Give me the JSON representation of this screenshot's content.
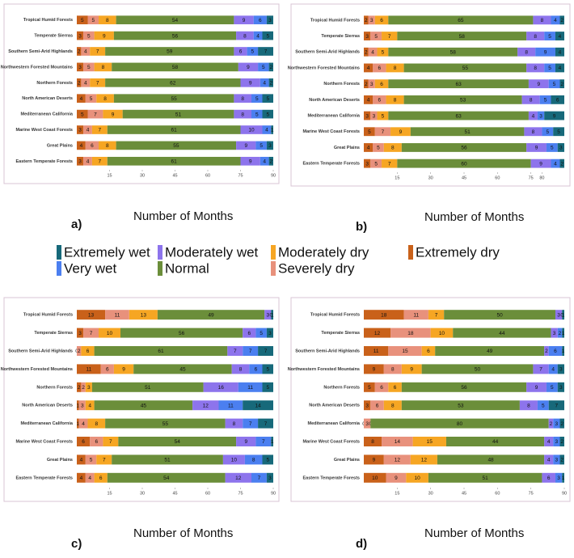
{
  "chart_data": [
    {
      "type": "bar",
      "orientation": "horizontal",
      "stacked": true,
      "label": "a)",
      "x_label": "Number of Months",
      "categories": [
        "Tropical Humid Forests",
        "Temperate Sierras",
        "Southern Semi-Arid Highlands",
        "Northwestern Forested Mountains",
        "Northern Forests",
        "North American Deserts",
        "Mediterranean California",
        "Marine West Coast Forests",
        "Great Plains",
        "Eastern Temperate Forests"
      ],
      "series": [
        {
          "name": "Extremely dry",
          "color": "#c9611a",
          "values": [
            5,
            3,
            2,
            3,
            2,
            4,
            5,
            3,
            4,
            3
          ]
        },
        {
          "name": "Severely dry",
          "color": "#e8917c",
          "values": [
            5,
            5,
            4,
            5,
            4,
            5,
            7,
            4,
            6,
            4
          ]
        },
        {
          "name": "Moderately dry",
          "color": "#f6a623",
          "values": [
            8,
            9,
            7,
            8,
            7,
            8,
            9,
            7,
            8,
            7
          ]
        },
        {
          "name": "Normal",
          "color": "#6b8e3a",
          "values": [
            54,
            56,
            59,
            58,
            62,
            55,
            51,
            61,
            55,
            61
          ]
        },
        {
          "name": "Moderately wet",
          "color": "#8d74ec",
          "values": [
            9,
            8,
            6,
            9,
            9,
            8,
            8,
            10,
            9,
            9
          ]
        },
        {
          "name": "Very wet",
          "color": "#4b7ff0",
          "values": [
            6,
            4,
            5,
            5,
            4,
            5,
            5,
            4,
            5,
            4
          ]
        },
        {
          "name": "Extremely wet",
          "color": "#17697a",
          "values": [
            3,
            5,
            7,
            2,
            2,
            5,
            5,
            1,
            3,
            2
          ]
        }
      ],
      "xlim": [
        0,
        90
      ],
      "xticks": [
        15,
        30,
        45,
        60,
        75,
        90
      ]
    },
    {
      "type": "bar",
      "orientation": "horizontal",
      "stacked": true,
      "label": "b)",
      "x_label": "Number of Months",
      "categories": [
        "Tropical Humid Forests",
        "Temperate Sierras",
        "Southern Semi-Arid Highlands",
        "Northwestern Forested Mountains",
        "Northern Forests",
        "North American Deserts",
        "Mediterranean California",
        "Marine West Coast Forests",
        "Great Plains",
        "Eastern Temperate Forests"
      ],
      "series": [
        {
          "name": "Extremely dry",
          "color": "#c9611a",
          "values": [
            2,
            3,
            2,
            4,
            2,
            4,
            3,
            5,
            4,
            3
          ]
        },
        {
          "name": "Severely dry",
          "color": "#e8917c",
          "values": [
            3,
            5,
            4,
            6,
            3,
            6,
            3,
            7,
            5,
            5
          ]
        },
        {
          "name": "Moderately dry",
          "color": "#f6a623",
          "values": [
            6,
            7,
            5,
            8,
            6,
            8,
            5,
            9,
            8,
            7
          ]
        },
        {
          "name": "Normal",
          "color": "#6b8e3a",
          "values": [
            65,
            58,
            58,
            55,
            63,
            53,
            63,
            51,
            56,
            60
          ]
        },
        {
          "name": "Moderately wet",
          "color": "#8d74ec",
          "values": [
            8,
            8,
            8,
            8,
            9,
            8,
            4,
            8,
            9,
            9
          ]
        },
        {
          "name": "Very wet",
          "color": "#4b7ff0",
          "values": [
            4,
            5,
            9,
            5,
            5,
            5,
            3,
            5,
            5,
            4
          ]
        },
        {
          "name": "Extremely wet",
          "color": "#17697a",
          "values": [
            2,
            4,
            4,
            4,
            2,
            6,
            9,
            5,
            3,
            2
          ]
        }
      ],
      "xlim": [
        0,
        90
      ],
      "xticks": [
        15,
        30,
        45,
        60,
        75,
        80
      ]
    },
    {
      "type": "bar",
      "orientation": "horizontal",
      "stacked": true,
      "label": "c)",
      "x_label": "Number of Months",
      "categories": [
        "Tropical Humid Forests",
        "Temperate Sierras",
        "Southern Semi-Arid Highlands",
        "Northwestern Forested Mountains",
        "Northern Forests",
        "North American Deserts",
        "Mediterranean California",
        "Marine West Coast Forests",
        "Great Plains",
        "Eastern Temperate Forests"
      ],
      "series": [
        {
          "name": "Extremely dry",
          "color": "#c9611a",
          "values": [
            13,
            3,
            0,
            11,
            2,
            1,
            1,
            6,
            4,
            4
          ]
        },
        {
          "name": "Severely dry",
          "color": "#e8917c",
          "values": [
            11,
            7,
            2,
            6,
            2,
            3,
            4,
            6,
            5,
            4
          ]
        },
        {
          "name": "Moderately dry",
          "color": "#f6a623",
          "values": [
            13,
            10,
            6,
            9,
            3,
            4,
            8,
            7,
            7,
            6
          ]
        },
        {
          "name": "Normal",
          "color": "#6b8e3a",
          "values": [
            49,
            56,
            61,
            45,
            51,
            45,
            55,
            54,
            51,
            54
          ]
        },
        {
          "name": "Moderately wet",
          "color": "#8d74ec",
          "values": [
            3,
            6,
            7,
            8,
            16,
            12,
            8,
            9,
            10,
            12
          ]
        },
        {
          "name": "Very wet",
          "color": "#4b7ff0",
          "values": [
            0,
            5,
            7,
            6,
            11,
            11,
            7,
            7,
            8,
            7
          ]
        },
        {
          "name": "Extremely wet",
          "color": "#17697a",
          "values": [
            1,
            3,
            7,
            5,
            5,
            14,
            7,
            1,
            5,
            3
          ]
        }
      ],
      "xlim": [
        0,
        90
      ],
      "xticks": [
        15,
        30,
        45,
        60,
        75,
        90
      ]
    },
    {
      "type": "bar",
      "orientation": "horizontal",
      "stacked": true,
      "label": "d)",
      "x_label": "Number of Months",
      "categories": [
        "Tropical Humid Forests",
        "Temperate Sierras",
        "Southern Semi-Arid Highlands",
        "Northwestern Forested Mountains",
        "Northern Forests",
        "North American Deserts",
        "Mediterranean California",
        "Marine West Coast Forests",
        "Great Plains",
        "Eastern Temperate Forests"
      ],
      "series": [
        {
          "name": "Extremely dry",
          "color": "#c9611a",
          "values": [
            18,
            12,
            11,
            9,
            5,
            3,
            0,
            8,
            9,
            10
          ]
        },
        {
          "name": "Severely dry",
          "color": "#e8917c",
          "values": [
            11,
            18,
            15,
            8,
            6,
            6,
            3,
            14,
            12,
            9
          ]
        },
        {
          "name": "Moderately dry",
          "color": "#f6a623",
          "values": [
            7,
            10,
            6,
            9,
            6,
            8,
            0,
            15,
            12,
            10
          ]
        },
        {
          "name": "Normal",
          "color": "#6b8e3a",
          "values": [
            50,
            44,
            49,
            50,
            56,
            53,
            80,
            44,
            48,
            51
          ]
        },
        {
          "name": "Moderately wet",
          "color": "#8d74ec",
          "values": [
            3,
            3,
            2,
            7,
            9,
            8,
            2,
            4,
            4,
            6
          ]
        },
        {
          "name": "Very wet",
          "color": "#4b7ff0",
          "values": [
            0,
            2,
            6,
            4,
            5,
            5,
            3,
            3,
            3,
            3
          ]
        },
        {
          "name": "Extremely wet",
          "color": "#17697a",
          "values": [
            1,
            1,
            1,
            3,
            3,
            7,
            2,
            2,
            2,
            1
          ]
        }
      ],
      "xlim": [
        0,
        90
      ],
      "xticks": [
        15,
        30,
        45,
        60,
        75,
        90
      ]
    }
  ]
}
